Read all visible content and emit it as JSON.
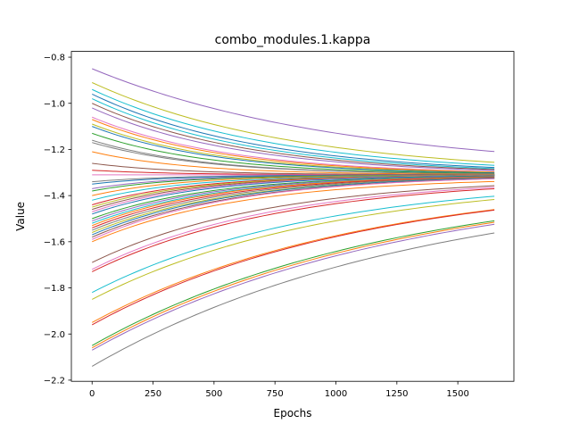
{
  "chart_data": {
    "type": "line",
    "title": "combo_modules.1.kappa",
    "xlabel": "Epochs",
    "ylabel": "Value",
    "xlim": [
      -85,
      1730
    ],
    "ylim": [
      -2.205,
      -0.775
    ],
    "xticks": [
      0,
      250,
      500,
      750,
      1000,
      1250,
      1500
    ],
    "xtick_labels": [
      "0",
      "250",
      "500",
      "750",
      "1000",
      "1250",
      "1500"
    ],
    "yticks": [
      -0.8,
      -1.0,
      -1.2,
      -1.4,
      -1.6,
      -1.8,
      -2.0,
      -2.2
    ],
    "ytick_labels": [
      "−0.8",
      "−1.0",
      "−1.2",
      "−1.4",
      "−1.6",
      "−1.8",
      "−2.0",
      "−2.2"
    ],
    "x_max": 1650,
    "grid": false,
    "legend": "none",
    "palette": [
      "#1f77b4",
      "#ff7f0e",
      "#2ca02c",
      "#d62728",
      "#9467bd",
      "#8c564b",
      "#e377c2",
      "#7f7f7f",
      "#bcbd22",
      "#17becf"
    ],
    "series_note_hidden": false,
    "series": [
      {
        "start": -0.85,
        "end": -1.3,
        "speed": 1.6,
        "color": "#9467bd"
      },
      {
        "start": -0.91,
        "end": -1.31,
        "speed": 2.0,
        "color": "#bcbd22"
      },
      {
        "start": -0.94,
        "end": -1.31,
        "speed": 2.2,
        "color": "#17becf"
      },
      {
        "start": -0.96,
        "end": -1.31,
        "speed": 2.4,
        "color": "#1f77b4"
      },
      {
        "start": -0.98,
        "end": -1.31,
        "speed": 2.5,
        "color": "#17becf"
      },
      {
        "start": -1.0,
        "end": -1.31,
        "speed": 2.6,
        "color": "#8c564b"
      },
      {
        "start": -1.02,
        "end": -1.31,
        "speed": 2.7,
        "color": "#9467bd"
      },
      {
        "start": -1.06,
        "end": -1.31,
        "speed": 2.9,
        "color": "#e377c2"
      },
      {
        "start": -1.07,
        "end": -1.31,
        "speed": 3.0,
        "color": "#ff7f0e"
      },
      {
        "start": -1.09,
        "end": -1.31,
        "speed": 3.1,
        "color": "#bcbd22"
      },
      {
        "start": -1.1,
        "end": -1.31,
        "speed": 3.2,
        "color": "#1f77b4"
      },
      {
        "start": -1.13,
        "end": -1.31,
        "speed": 3.4,
        "color": "#2ca02c"
      },
      {
        "start": -1.16,
        "end": -1.31,
        "speed": 3.6,
        "color": "#7f7f7f"
      },
      {
        "start": -1.17,
        "end": -1.31,
        "speed": 3.6,
        "color": "#7f7f7f"
      },
      {
        "start": -1.21,
        "end": -1.31,
        "speed": 4.0,
        "color": "#ff7f0e"
      },
      {
        "start": -1.26,
        "end": -1.31,
        "speed": 4.5,
        "color": "#8c564b"
      },
      {
        "start": -1.29,
        "end": -1.31,
        "speed": 5.0,
        "color": "#d62728"
      },
      {
        "start": -1.31,
        "end": -1.31,
        "speed": 5.0,
        "color": "#e377c2"
      },
      {
        "start": -1.34,
        "end": -1.31,
        "speed": 5.0,
        "color": "#7f7f7f"
      },
      {
        "start": -1.35,
        "end": -1.31,
        "speed": 5.0,
        "color": "#1f77b4"
      },
      {
        "start": -1.37,
        "end": -1.31,
        "speed": 4.8,
        "color": "#9467bd"
      },
      {
        "start": -1.38,
        "end": -1.31,
        "speed": 4.6,
        "color": "#2ca02c"
      },
      {
        "start": -1.4,
        "end": -1.31,
        "speed": 4.4,
        "color": "#ff7f0e"
      },
      {
        "start": -1.42,
        "end": -1.31,
        "speed": 4.2,
        "color": "#17becf"
      },
      {
        "start": -1.44,
        "end": -1.31,
        "speed": 4.0,
        "color": "#d62728"
      },
      {
        "start": -1.45,
        "end": -1.31,
        "speed": 3.9,
        "color": "#bcbd22"
      },
      {
        "start": -1.46,
        "end": -1.31,
        "speed": 3.8,
        "color": "#8c564b"
      },
      {
        "start": -1.47,
        "end": -1.31,
        "speed": 3.7,
        "color": "#e377c2"
      },
      {
        "start": -1.48,
        "end": -1.31,
        "speed": 3.6,
        "color": "#1f77b4"
      },
      {
        "start": -1.5,
        "end": -1.31,
        "speed": 3.4,
        "color": "#2ca02c"
      },
      {
        "start": -1.51,
        "end": -1.31,
        "speed": 3.3,
        "color": "#9467bd"
      },
      {
        "start": -1.52,
        "end": -1.31,
        "speed": 3.2,
        "color": "#17becf"
      },
      {
        "start": -1.53,
        "end": -1.31,
        "speed": 3.2,
        "color": "#ff7f0e"
      },
      {
        "start": -1.54,
        "end": -1.31,
        "speed": 3.1,
        "color": "#d62728"
      },
      {
        "start": -1.55,
        "end": -1.31,
        "speed": 3.0,
        "color": "#7f7f7f"
      },
      {
        "start": -1.56,
        "end": -1.31,
        "speed": 2.9,
        "color": "#bcbd22"
      },
      {
        "start": -1.57,
        "end": -1.31,
        "speed": 2.9,
        "color": "#1f77b4"
      },
      {
        "start": -1.58,
        "end": -1.31,
        "speed": 2.8,
        "color": "#8c564b"
      },
      {
        "start": -1.59,
        "end": -1.31,
        "speed": 2.8,
        "color": "#e377c2"
      },
      {
        "start": -1.6,
        "end": -1.32,
        "speed": 2.7,
        "color": "#ff7f0e"
      },
      {
        "start": -1.69,
        "end": -1.32,
        "speed": 2.3,
        "color": "#8c564b"
      },
      {
        "start": -1.72,
        "end": -1.32,
        "speed": 2.2,
        "color": "#e377c2"
      },
      {
        "start": -1.73,
        "end": -1.32,
        "speed": 2.1,
        "color": "#d62728"
      },
      {
        "start": -1.82,
        "end": -1.32,
        "speed": 1.8,
        "color": "#17becf"
      },
      {
        "start": -1.85,
        "end": -1.32,
        "speed": 1.7,
        "color": "#bcbd22"
      },
      {
        "start": -1.95,
        "end": -1.32,
        "speed": 1.5,
        "color": "#ff7f0e"
      },
      {
        "start": -1.96,
        "end": -1.32,
        "speed": 1.5,
        "color": "#d62728"
      },
      {
        "start": -2.05,
        "end": -1.32,
        "speed": 1.35,
        "color": "#2ca02c"
      },
      {
        "start": -2.06,
        "end": -1.32,
        "speed": 1.33,
        "color": "#ff7f0e"
      },
      {
        "start": -2.07,
        "end": -1.32,
        "speed": 1.3,
        "color": "#9467bd"
      },
      {
        "start": -2.14,
        "end": -1.33,
        "speed": 1.25,
        "color": "#7f7f7f"
      }
    ]
  }
}
